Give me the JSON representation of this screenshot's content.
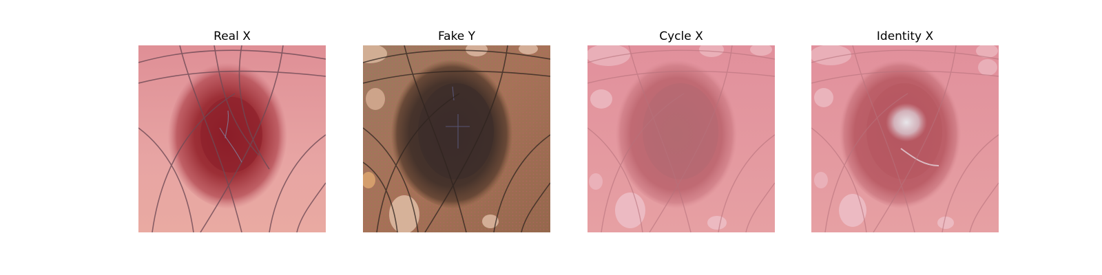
{
  "figure": {
    "panels": [
      {
        "title": "Real X"
      },
      {
        "title": "Fake Y"
      },
      {
        "title": "Cycle X"
      },
      {
        "title": "Identity X"
      }
    ]
  }
}
